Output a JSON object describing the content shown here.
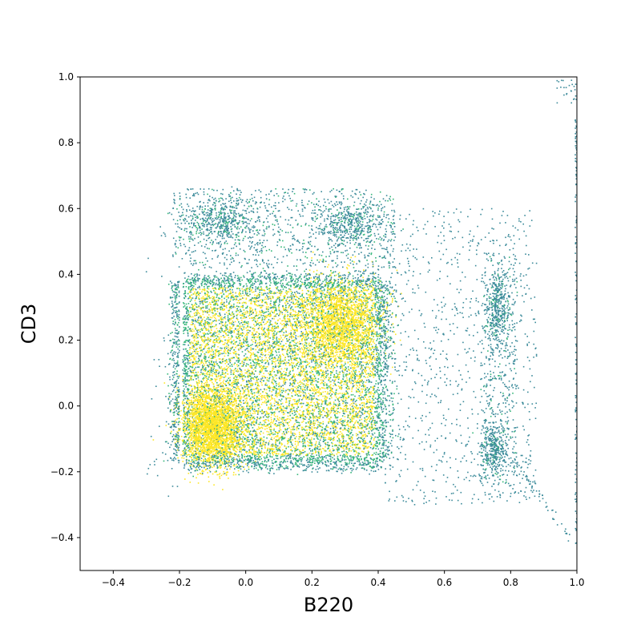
{
  "chart_data": {
    "type": "scatter",
    "title": "",
    "xlabel": "B220",
    "ylabel": "CD3",
    "xlim": [
      -0.5,
      1.0
    ],
    "ylim": [
      -0.5,
      1.0
    ],
    "xticks": [
      -0.4,
      -0.2,
      0.0,
      0.2,
      0.4,
      0.6,
      0.8,
      1.0
    ],
    "yticks": [
      -0.4,
      -0.2,
      0.0,
      0.2,
      0.4,
      0.6,
      0.8,
      1.0
    ],
    "xtick_labels": [
      "−0.4",
      "−0.2",
      "0.0",
      "0.2",
      "0.4",
      "0.6",
      "0.8",
      "1.0"
    ],
    "ytick_labels": [
      "−0.4",
      "−0.2",
      "0.0",
      "0.2",
      "0.4",
      "0.6",
      "0.8",
      "1.0"
    ],
    "grid": false,
    "legend": "none",
    "colormap": "viridis",
    "colors": {
      "low": "#3b8a9a",
      "mid": "#35b779",
      "high": "#fde725"
    },
    "series": [
      {
        "region_x": [
          -0.19,
          0.41
        ],
        "region_y": [
          -0.17,
          0.38
        ],
        "density": "very high",
        "approx_points": 14000
      },
      {
        "region_x": [
          -0.22,
          0.45
        ],
        "region_y": [
          0.42,
          0.66
        ],
        "density": "medium",
        "approx_points": 1800
      },
      {
        "region_x": [
          0.71,
          0.82
        ],
        "region_y": [
          -0.27,
          0.47
        ],
        "density": "medium",
        "approx_points": 1100
      },
      {
        "region_x": [
          0.42,
          0.88
        ],
        "region_y": [
          -0.3,
          0.6
        ],
        "density": "sparse",
        "approx_points": 900
      },
      {
        "region_x": [
          0.9,
          1.0
        ],
        "region_y": [
          -0.42,
          0.98
        ],
        "density": "sparse",
        "approx_points": 200
      }
    ]
  }
}
